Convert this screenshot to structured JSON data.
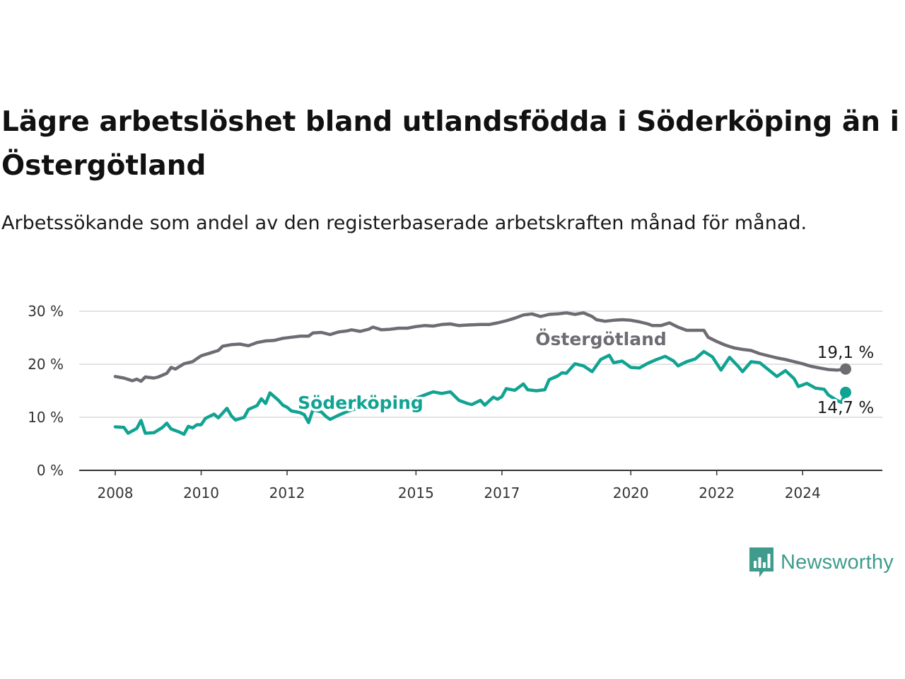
{
  "title": "Lägre arbetslöshet bland utlandsfödda i Söderköping än i Östergötland",
  "subtitle": "Arbetssökande som andel av den registerbaserade arbetskraften månad för månad.",
  "brand": {
    "name": "Newsworthy",
    "icon": "newsworthy-logo-icon",
    "color": "#3f9b8c"
  },
  "chart_data": {
    "type": "line",
    "title": "Lägre arbetslöshet bland utlandsfödda i Söderköping än i Östergötland",
    "subtitle": "Arbetssökande som andel av den registerbaserade arbetskraften månad för månad.",
    "xlabel": "",
    "ylabel": "",
    "xlim": [
      2008,
      2025
    ],
    "ylim": [
      0,
      30
    ],
    "x_ticks": [
      {
        "value": 2008,
        "label": "2008"
      },
      {
        "value": 2010,
        "label": "2010"
      },
      {
        "value": 2012,
        "label": "2012"
      },
      {
        "value": 2015,
        "label": "2015"
      },
      {
        "value": 2017,
        "label": "2017"
      },
      {
        "value": 2020,
        "label": "2020"
      },
      {
        "value": 2022,
        "label": "2022"
      },
      {
        "value": 2024,
        "label": "2024"
      }
    ],
    "y_ticks": [
      {
        "value": 0,
        "label": "0 %"
      },
      {
        "value": 10,
        "label": "10 %"
      },
      {
        "value": 20,
        "label": "20 %"
      },
      {
        "value": 30,
        "label": "30 %"
      }
    ],
    "grid": "horizontal",
    "series": [
      {
        "name": "Östergötland",
        "color": "#6e6c73",
        "end_label": "19,1 %",
        "points": [
          [
            2008.0,
            17.7
          ],
          [
            2008.2,
            17.4
          ],
          [
            2008.4,
            16.9
          ],
          [
            2008.5,
            17.2
          ],
          [
            2008.6,
            16.8
          ],
          [
            2008.7,
            17.6
          ],
          [
            2008.9,
            17.4
          ],
          [
            2009.0,
            17.6
          ],
          [
            2009.2,
            18.3
          ],
          [
            2009.3,
            19.4
          ],
          [
            2009.4,
            19.1
          ],
          [
            2009.6,
            20.1
          ],
          [
            2009.8,
            20.5
          ],
          [
            2010.0,
            21.6
          ],
          [
            2010.2,
            22.1
          ],
          [
            2010.4,
            22.6
          ],
          [
            2010.5,
            23.4
          ],
          [
            2010.7,
            23.7
          ],
          [
            2010.9,
            23.8
          ],
          [
            2011.1,
            23.5
          ],
          [
            2011.3,
            24.1
          ],
          [
            2011.5,
            24.4
          ],
          [
            2011.7,
            24.5
          ],
          [
            2011.9,
            24.9
          ],
          [
            2012.1,
            25.1
          ],
          [
            2012.3,
            25.3
          ],
          [
            2012.5,
            25.3
          ],
          [
            2012.6,
            25.9
          ],
          [
            2012.8,
            26.0
          ],
          [
            2013.0,
            25.6
          ],
          [
            2013.2,
            26.1
          ],
          [
            2013.4,
            26.3
          ],
          [
            2013.5,
            26.5
          ],
          [
            2013.7,
            26.2
          ],
          [
            2013.9,
            26.6
          ],
          [
            2014.0,
            27.0
          ],
          [
            2014.2,
            26.5
          ],
          [
            2014.4,
            26.6
          ],
          [
            2014.6,
            26.8
          ],
          [
            2014.8,
            26.8
          ],
          [
            2015.0,
            27.1
          ],
          [
            2015.2,
            27.3
          ],
          [
            2015.4,
            27.2
          ],
          [
            2015.6,
            27.5
          ],
          [
            2015.8,
            27.6
          ],
          [
            2016.0,
            27.3
          ],
          [
            2016.2,
            27.4
          ],
          [
            2016.5,
            27.5
          ],
          [
            2016.7,
            27.5
          ],
          [
            2016.9,
            27.8
          ],
          [
            2017.1,
            28.2
          ],
          [
            2017.3,
            28.7
          ],
          [
            2017.5,
            29.3
          ],
          [
            2017.7,
            29.5
          ],
          [
            2017.9,
            29.0
          ],
          [
            2018.1,
            29.4
          ],
          [
            2018.3,
            29.5
          ],
          [
            2018.5,
            29.7
          ],
          [
            2018.7,
            29.4
          ],
          [
            2018.9,
            29.7
          ],
          [
            2019.1,
            29.0
          ],
          [
            2019.2,
            28.4
          ],
          [
            2019.4,
            28.1
          ],
          [
            2019.6,
            28.3
          ],
          [
            2019.8,
            28.4
          ],
          [
            2020.0,
            28.3
          ],
          [
            2020.2,
            28.0
          ],
          [
            2020.4,
            27.6
          ],
          [
            2020.5,
            27.3
          ],
          [
            2020.7,
            27.3
          ],
          [
            2020.9,
            27.8
          ],
          [
            2021.1,
            27.0
          ],
          [
            2021.3,
            26.4
          ],
          [
            2021.5,
            26.4
          ],
          [
            2021.7,
            26.4
          ],
          [
            2021.8,
            25.1
          ],
          [
            2022.0,
            24.3
          ],
          [
            2022.2,
            23.6
          ],
          [
            2022.4,
            23.1
          ],
          [
            2022.6,
            22.8
          ],
          [
            2022.8,
            22.6
          ],
          [
            2023.0,
            22.0
          ],
          [
            2023.2,
            21.6
          ],
          [
            2023.4,
            21.2
          ],
          [
            2023.6,
            20.9
          ],
          [
            2023.8,
            20.5
          ],
          [
            2024.0,
            20.1
          ],
          [
            2024.2,
            19.6
          ],
          [
            2024.4,
            19.3
          ],
          [
            2024.6,
            19.0
          ],
          [
            2024.8,
            18.9
          ],
          [
            2025.0,
            19.1
          ]
        ]
      },
      {
        "name": "Söderköping",
        "color": "#11a392",
        "end_label": "14,7 %",
        "points": [
          [
            2008.0,
            8.2
          ],
          [
            2008.2,
            8.1
          ],
          [
            2008.3,
            7.0
          ],
          [
            2008.5,
            7.9
          ],
          [
            2008.6,
            9.4
          ],
          [
            2008.7,
            7.0
          ],
          [
            2008.9,
            7.1
          ],
          [
            2009.1,
            8.1
          ],
          [
            2009.2,
            8.9
          ],
          [
            2009.3,
            7.8
          ],
          [
            2009.5,
            7.2
          ],
          [
            2009.6,
            6.8
          ],
          [
            2009.7,
            8.3
          ],
          [
            2009.8,
            8.0
          ],
          [
            2009.9,
            8.6
          ],
          [
            2010.0,
            8.6
          ],
          [
            2010.1,
            9.8
          ],
          [
            2010.3,
            10.6
          ],
          [
            2010.4,
            9.9
          ],
          [
            2010.6,
            11.7
          ],
          [
            2010.7,
            10.3
          ],
          [
            2010.8,
            9.5
          ],
          [
            2011.0,
            10.0
          ],
          [
            2011.1,
            11.5
          ],
          [
            2011.3,
            12.2
          ],
          [
            2011.4,
            13.5
          ],
          [
            2011.5,
            12.6
          ],
          [
            2011.6,
            14.6
          ],
          [
            2011.8,
            13.2
          ],
          [
            2011.9,
            12.3
          ],
          [
            2012.0,
            11.9
          ],
          [
            2012.1,
            11.2
          ],
          [
            2012.3,
            10.9
          ],
          [
            2012.4,
            10.5
          ],
          [
            2012.5,
            9.0
          ],
          [
            2012.6,
            11.4
          ],
          [
            2012.8,
            11.0
          ],
          [
            2012.9,
            10.2
          ],
          [
            2013.0,
            9.6
          ],
          [
            2013.2,
            10.4
          ],
          [
            2013.4,
            11.1
          ],
          [
            2013.6,
            11.6
          ],
          [
            2013.9,
            12.2
          ],
          [
            2014.2,
            12.6
          ],
          [
            2014.5,
            13.0
          ],
          [
            2014.8,
            13.1
          ],
          [
            2015.0,
            13.6
          ],
          [
            2015.2,
            14.2
          ],
          [
            2015.4,
            14.8
          ],
          [
            2015.6,
            14.5
          ],
          [
            2015.8,
            14.8
          ],
          [
            2016.0,
            13.2
          ],
          [
            2016.2,
            12.6
          ],
          [
            2016.3,
            12.4
          ],
          [
            2016.5,
            13.2
          ],
          [
            2016.6,
            12.3
          ],
          [
            2016.8,
            13.8
          ],
          [
            2016.9,
            13.4
          ],
          [
            2017.0,
            13.9
          ],
          [
            2017.1,
            15.4
          ],
          [
            2017.3,
            15.1
          ],
          [
            2017.5,
            16.3
          ],
          [
            2017.6,
            15.2
          ],
          [
            2017.8,
            15.0
          ],
          [
            2018.0,
            15.2
          ],
          [
            2018.1,
            17.1
          ],
          [
            2018.3,
            17.8
          ],
          [
            2018.4,
            18.4
          ],
          [
            2018.5,
            18.3
          ],
          [
            2018.7,
            20.1
          ],
          [
            2018.9,
            19.7
          ],
          [
            2019.1,
            18.6
          ],
          [
            2019.3,
            20.9
          ],
          [
            2019.5,
            21.7
          ],
          [
            2019.6,
            20.3
          ],
          [
            2019.8,
            20.6
          ],
          [
            2020.0,
            19.4
          ],
          [
            2020.2,
            19.3
          ],
          [
            2020.4,
            20.2
          ],
          [
            2020.6,
            20.9
          ],
          [
            2020.8,
            21.5
          ],
          [
            2021.0,
            20.6
          ],
          [
            2021.1,
            19.7
          ],
          [
            2021.3,
            20.5
          ],
          [
            2021.5,
            21.0
          ],
          [
            2021.7,
            22.4
          ],
          [
            2021.9,
            21.4
          ],
          [
            2022.1,
            18.9
          ],
          [
            2022.3,
            21.3
          ],
          [
            2022.5,
            19.6
          ],
          [
            2022.6,
            18.6
          ],
          [
            2022.8,
            20.5
          ],
          [
            2023.0,
            20.3
          ],
          [
            2023.2,
            19.0
          ],
          [
            2023.4,
            17.7
          ],
          [
            2023.6,
            18.8
          ],
          [
            2023.8,
            17.3
          ],
          [
            2023.9,
            15.8
          ],
          [
            2024.1,
            16.4
          ],
          [
            2024.3,
            15.5
          ],
          [
            2024.5,
            15.3
          ],
          [
            2024.6,
            14.2
          ],
          [
            2024.8,
            13.2
          ],
          [
            2024.9,
            12.8
          ],
          [
            2025.0,
            14.7
          ]
        ]
      }
    ]
  }
}
